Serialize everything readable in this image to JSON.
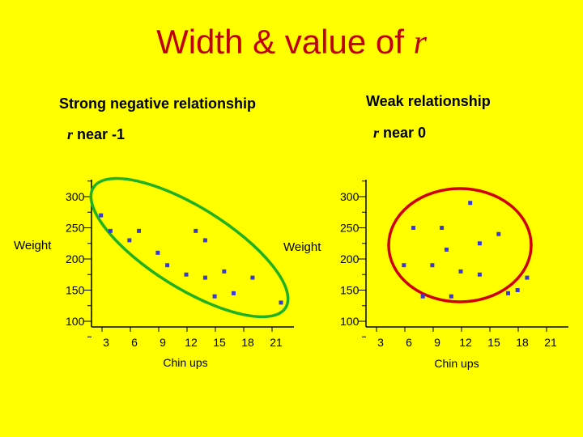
{
  "slide_title_prefix": "Width & value of ",
  "slide_title_symbol": "r",
  "left_panel": {
    "heading": "Strong negative relationship",
    "r_symbol": "r",
    "r_text": " near  -1"
  },
  "right_panel": {
    "heading": "Weak relationship",
    "r_symbol": "r",
    "r_text": " near  0"
  },
  "colors": {
    "background": "#ffff00",
    "title": "#c00000",
    "point": "#3a3ad0",
    "left_ellipse": "#20b020",
    "right_ellipse": "#d00000"
  },
  "chart_data": [
    {
      "type": "scatter",
      "title": "",
      "xlabel": "Chin ups",
      "ylabel": "Weight",
      "xticks": [
        3,
        6,
        9,
        12,
        15,
        18,
        21
      ],
      "yticks": [
        100,
        150,
        200,
        250,
        300
      ],
      "xlim": [
        0,
        21
      ],
      "ylim": [
        100,
        300
      ],
      "points": [
        {
          "x": 1,
          "y": 270
        },
        {
          "x": 2,
          "y": 245
        },
        {
          "x": 4,
          "y": 230
        },
        {
          "x": 5,
          "y": 245
        },
        {
          "x": 7,
          "y": 210
        },
        {
          "x": 8,
          "y": 190
        },
        {
          "x": 11,
          "y": 245
        },
        {
          "x": 12,
          "y": 230
        },
        {
          "x": 10,
          "y": 175
        },
        {
          "x": 12,
          "y": 170
        },
        {
          "x": 14,
          "y": 180
        },
        {
          "x": 17,
          "y": 170
        },
        {
          "x": 13,
          "y": 140
        },
        {
          "x": 15,
          "y": 145
        },
        {
          "x": 20,
          "y": 130
        }
      ],
      "grid": false
    },
    {
      "type": "scatter",
      "title": "",
      "xlabel": "Chin ups",
      "ylabel": "Weight",
      "xticks": [
        3,
        6,
        9,
        12,
        15,
        18,
        21
      ],
      "yticks": [
        100,
        150,
        200,
        250,
        300
      ],
      "xlim": [
        0,
        21
      ],
      "ylim": [
        100,
        300
      ],
      "points": [
        {
          "x": 11,
          "y": 290
        },
        {
          "x": 5,
          "y": 250
        },
        {
          "x": 8,
          "y": 250
        },
        {
          "x": 14,
          "y": 240
        },
        {
          "x": 12,
          "y": 225
        },
        {
          "x": 8.5,
          "y": 215
        },
        {
          "x": 4,
          "y": 190
        },
        {
          "x": 7,
          "y": 190
        },
        {
          "x": 10,
          "y": 180
        },
        {
          "x": 12,
          "y": 175
        },
        {
          "x": 17,
          "y": 170
        },
        {
          "x": 15,
          "y": 145
        },
        {
          "x": 16,
          "y": 150
        },
        {
          "x": 6,
          "y": 140
        },
        {
          "x": 9,
          "y": 140
        }
      ],
      "grid": false
    }
  ]
}
